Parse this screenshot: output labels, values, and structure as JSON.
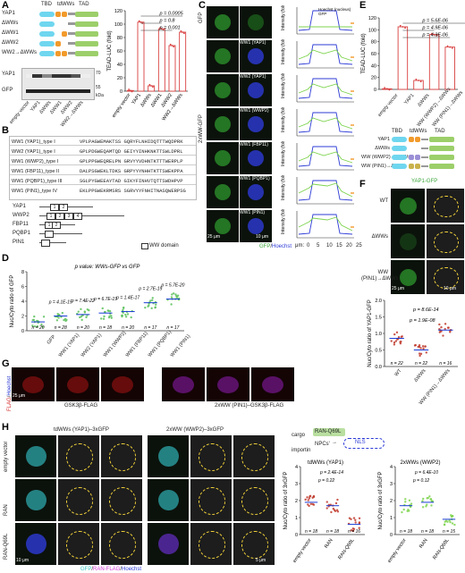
{
  "panels": {
    "A": "A",
    "B": "B",
    "C": "C",
    "D": "D",
    "E": "E",
    "F": "F",
    "G": "G",
    "H": "H"
  },
  "A": {
    "domain_labels": [
      "TBD",
      "tdWWs",
      "TAD"
    ],
    "constructs": [
      "YAP1",
      "ΔWWs",
      "ΔWW1",
      "ΔWW2",
      "WW2→ΔWWs"
    ],
    "blot_labels": [
      "YAP1",
      "GFP"
    ],
    "kda_labels": [
      "70",
      "55",
      "kDa"
    ],
    "lane_labels": [
      "empty vector",
      "YAP1",
      "ΔWWs",
      "ΔWW1",
      "ΔWW2",
      "WW2→ΔWWs"
    ],
    "chart_data": {
      "type": "bar",
      "categories": [
        "empty vector",
        "YAP1",
        "ΔWWs",
        "ΔWW1",
        "ΔWW2",
        "WW2→ΔWWs"
      ],
      "values": [
        1,
        103,
        8,
        93,
        68,
        88
      ],
      "ylabel": "TEAD-LUC (fold)",
      "ylim": [
        0,
        120
      ],
      "yticks": [
        "0",
        "20",
        "40",
        "60",
        "80",
        "100",
        "120"
      ],
      "pvalues": [
        "p = 0.0005",
        "p = 0.8",
        "p = 0.001"
      ]
    }
  },
  "B": {
    "rows": [
      {
        "name": "WW1 (YAP1)_type I",
        "seq": "VPLPAGWEMAKTSS GQRYFLNHIDQTTTWQDPRK"
      },
      {
        "name": "WW2 (YAP1)_type I",
        "seq": "GPLPDGWEQAMTQD GEIYYINHKNKTTSWLDPRL"
      },
      {
        "name": "WW1 (WWP2)_type I",
        "seq": "GPLPPGWEQRELPN GRVYYVDHNTKTTTWERPLP"
      },
      {
        "name": "WW1 (FBP11)_type II",
        "seq": "DALPSGWEKLTDKS GRPYYYNHHTKTTSWEKPPA"
      },
      {
        "name": "WW1 (PQBP1)_type III",
        "seq": "SGLPYGWEEAYTAD GIKYFINHVTQTTSWDHPVP"
      },
      {
        "name": "WW1 (PIN1)_type IV",
        "seq": "EKLPPGWEKRMSRS SGRVYYFNHITNASQWERPSG"
      }
    ],
    "proteins": [
      "YAP1",
      "WWP2",
      "FBP11",
      "PQBP1",
      "PIN1"
    ],
    "legend": "WW domain"
  },
  "C": {
    "top_label": "GFP",
    "side_label": "2xWW-GFP",
    "rows": [
      "WW1 (YAP1)",
      "WW2 (YAP1)",
      "WW1 (WWP2)",
      "WW1 (FBP11)",
      "WW1 (PQBP1)",
      "WW1 (PIN1)"
    ],
    "legend": [
      "Hoechst (nucleus)",
      "GFP"
    ],
    "ylabel": "Intensity (fold)",
    "xlabel": "μm:",
    "xticks": [
      "0",
      "5",
      "10",
      "15",
      "20",
      "25"
    ],
    "scale": "25 μm",
    "scale2": "10 μm",
    "footer_gfp": "GFP",
    "footer_sep": "/",
    "footer_hoechst": "Hoechst"
  },
  "D": {
    "title": "p value: WWs-GFP vs GFP",
    "ylabel": "Nuc/Cyto ratio of GFP",
    "categories": [
      "GFP",
      "WW1 (YAP1)",
      "WW2 (YAP1)",
      "WW1 (WWP2)",
      "WW1 (FBP11)",
      "WW1 (PQBP1)",
      "WW1 (PIN1)"
    ],
    "ns": [
      "n = 20",
      "n = 28",
      "n = 20",
      "n = 18",
      "n = 20",
      "n = 17",
      "n = 17"
    ],
    "pvalues": [
      "p = 4.1E-15",
      "p = 7.4E-22",
      "p = 6.7E-19",
      "p = 1.4E-17",
      "p = 2.7E-19",
      "p = 5.7E-20"
    ],
    "yticks": [
      "0",
      "2",
      "4",
      "6",
      "8"
    ],
    "chart_data": {
      "type": "scatter",
      "categories": [
        "GFP",
        "WW1 (YAP1)",
        "WW2 (YAP1)",
        "WW1 (WWP2)",
        "WW1 (FBP11)",
        "WW1 (PQBP1)",
        "WW1 (PIN1)"
      ],
      "medians": [
        1.2,
        2.0,
        2.2,
        2.4,
        2.6,
        3.8,
        4.3
      ],
      "ylim": [
        0,
        8
      ]
    }
  },
  "E": {
    "ylabel": "TEAD-LUC (fold)",
    "yticks": [
      "0",
      "20",
      "40",
      "60",
      "80",
      "100",
      "120"
    ],
    "pvalues": [
      "p = 5.6E-06",
      "p = 4.9E-06",
      "p = 4.3E-06"
    ],
    "construct_labels": [
      "YAP1",
      "ΔWWs",
      "WW (WWP2)→ΔWWs",
      "WW (PIN1)→ΔWWs"
    ],
    "domain_labels": [
      "TBD",
      "tdWWs",
      "TAD"
    ],
    "chart_data": {
      "type": "bar",
      "categories": [
        "empty vector",
        "YAP1",
        "ΔWWs",
        "WW (WWP2)→ΔWWs",
        "WW (PIN1)→ΔWWs"
      ],
      "values": [
        1,
        105,
        15,
        92,
        71
      ],
      "ylim": [
        0,
        120
      ]
    }
  },
  "F": {
    "title": "YAP1-GFP",
    "rows": [
      "WT",
      "ΔWWs",
      "WW (PIN1)→ΔWWs"
    ],
    "scale": "25 μm",
    "scale2": "10 μm",
    "ylabel": "Nuc/Cyto ratio of YAP1-GFP",
    "pvalues": [
      "p = 8.6E-14",
      "p = 1.9E-08"
    ],
    "ns": [
      "n = 22",
      "n = 22",
      "n = 16"
    ],
    "categories": [
      "WT",
      "ΔWWs",
      "WW (PIN1)→ΔWWs"
    ],
    "yticks": [
      "0.0",
      "0.5",
      "1.0",
      "1.5",
      "2.0"
    ],
    "chart_data": {
      "type": "scatter",
      "categories": [
        "WT",
        "ΔWWs",
        "WW (PIN1)→ΔWWs"
      ],
      "medians": [
        0.85,
        0.5,
        1.1
      ],
      "ylim": [
        0,
        2.0
      ]
    }
  },
  "G": {
    "side_flag": "FLAG",
    "side_sep": "/",
    "side_hoechst": "Hoechst",
    "captions": [
      "GSK3β-FLAG",
      "2xWW (PIN1)–GSK3β-FLAG"
    ],
    "scale": "25 μm"
  },
  "H": {
    "titles": [
      "tdWWs (YAP1)–3xGFP",
      "2xWW (WWP2)–3xGFP"
    ],
    "rows": [
      "empty vector",
      "RAN",
      "RAN-Q69L"
    ],
    "footer": [
      "GFP",
      "/",
      "RAN-FLAG",
      "/",
      "Hoechst"
    ],
    "scale": "10 μm",
    "scale2": "5 μm",
    "schema": {
      "cargo": "cargo",
      "npc": "NPCs'",
      "importin": "importin",
      "nls": "NLS",
      "mutant": "RAN-Q69L"
    },
    "ylabel": "Nuc/Cyto ratio of 3xGFP",
    "plot1": {
      "title": "tdWWs (YAP1)",
      "pvalues": [
        "p = 2.4E-14",
        "p = 0.22"
      ],
      "ns": [
        "n = 18",
        "n = 18",
        "n = 16"
      ]
    },
    "plot2": {
      "title": "2xWWs (WWP2)",
      "pvalues": [
        "p = 6.4E-10",
        "p = 0.12"
      ],
      "ns": [
        "n = 18",
        "n = 18",
        "n = 15"
      ]
    },
    "categories": [
      "empty vector",
      "RAN",
      "RAN-Q69L"
    ],
    "yticks": [
      "0",
      "1",
      "2",
      "3",
      "4"
    ],
    "chart_data": [
      {
        "type": "scatter",
        "title": "tdWWs (YAP1)",
        "categories": [
          "empty vector",
          "RAN",
          "RAN-Q69L"
        ],
        "medians": [
          1.9,
          1.7,
          0.6
        ],
        "ylim": [
          0,
          4
        ]
      },
      {
        "type": "scatter",
        "title": "2xWWs (WWP2)",
        "categories": [
          "empty vector",
          "RAN",
          "RAN-Q69L"
        ],
        "medians": [
          1.7,
          1.9,
          0.9
        ],
        "ylim": [
          0,
          4
        ]
      }
    ]
  }
}
